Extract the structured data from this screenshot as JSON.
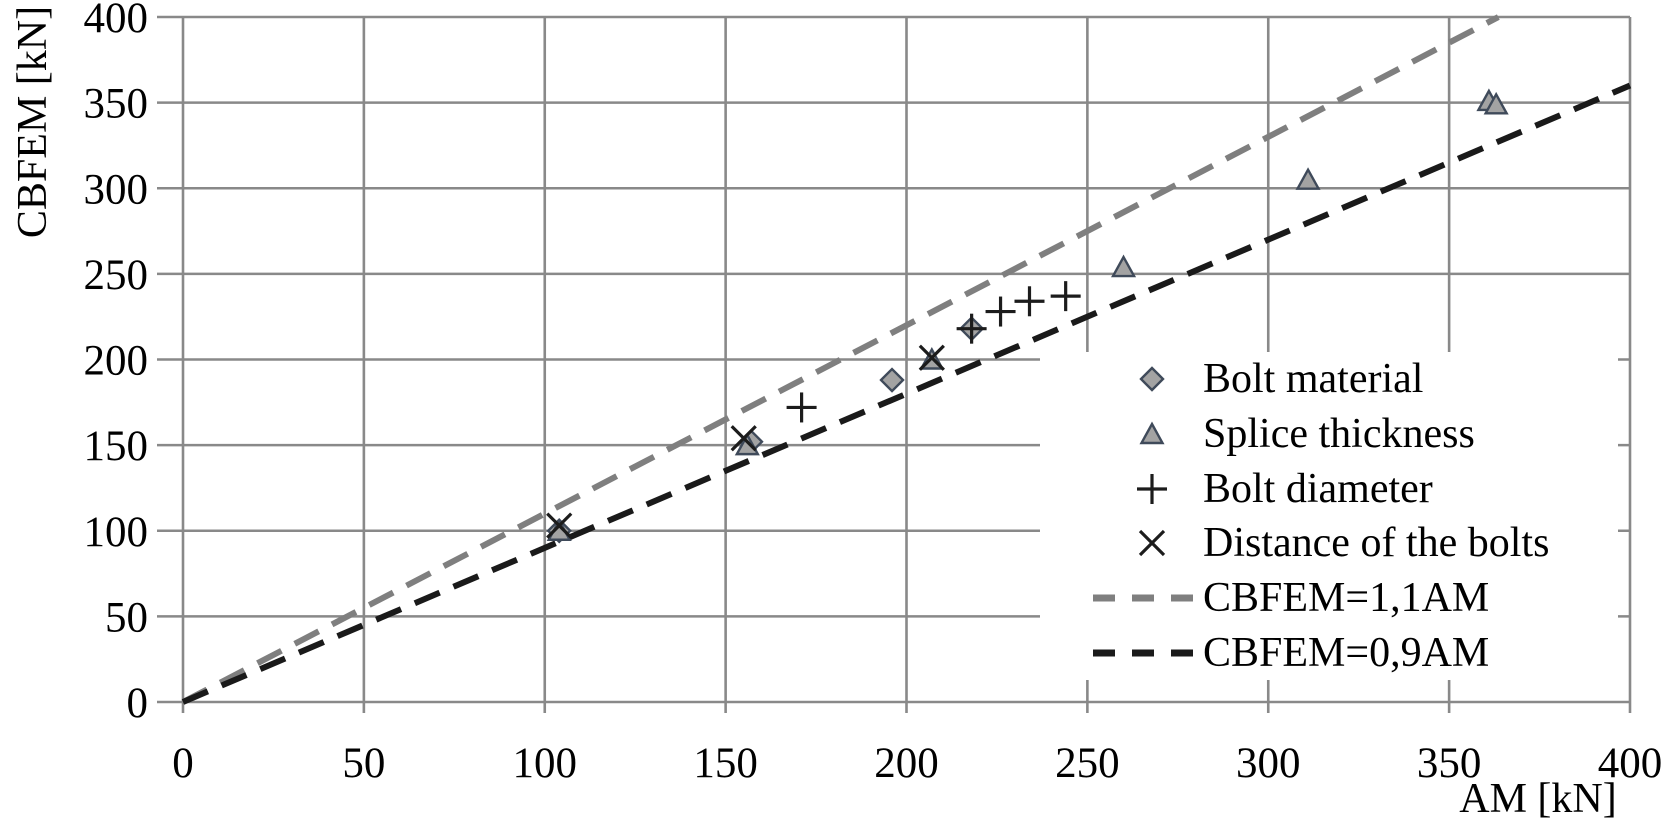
{
  "chart_data": {
    "type": "scatter",
    "title": "",
    "xlabel": "AM [kN]",
    "ylabel": "CBFEM [kN]",
    "xlim": [
      0,
      400
    ],
    "ylim": [
      0,
      400
    ],
    "x_ticks": [
      0,
      50,
      100,
      150,
      200,
      250,
      300,
      350,
      400
    ],
    "y_ticks": [
      0,
      50,
      100,
      150,
      200,
      250,
      300,
      350,
      400
    ],
    "grid": true,
    "legend_position": "inside-right",
    "colors": {
      "gridline": "#898989",
      "axis_line": "#898989",
      "marker_fill": "#a3a3a3",
      "marker_stroke": "#3f4a5a",
      "cross_stroke": "#1c1c1c",
      "line_gray": "#7f7f7f",
      "line_black": "#1a1a1a",
      "text": "#000000"
    },
    "series": [
      {
        "name": "Bolt material",
        "marker": "diamond",
        "points": [
          [
            104,
            100
          ],
          [
            157,
            152
          ],
          [
            196,
            188
          ],
          [
            218,
            218
          ]
        ]
      },
      {
        "name": "Splice thickness",
        "marker": "triangle",
        "points": [
          [
            104,
            100
          ],
          [
            156,
            150
          ],
          [
            207,
            200
          ],
          [
            260,
            254
          ],
          [
            311,
            305
          ],
          [
            361,
            351
          ],
          [
            363,
            349
          ]
        ]
      },
      {
        "name": "Bolt diameter",
        "marker": "plus",
        "points": [
          [
            171,
            172
          ],
          [
            218,
            218
          ],
          [
            226,
            228
          ],
          [
            234,
            234
          ],
          [
            244,
            237
          ]
        ]
      },
      {
        "name": "Distance of the bolts",
        "marker": "x",
        "points": [
          [
            104,
            103
          ],
          [
            155,
            154
          ],
          [
            207,
            201
          ]
        ]
      },
      {
        "name": "CBFEM=1,1AM",
        "marker": "dashed-line",
        "color_key": "line_gray",
        "line": {
          "slope": 1.1,
          "from_x": 0,
          "to_x": 363.6
        }
      },
      {
        "name": "CBFEM=0,9AM",
        "marker": "dashed-line",
        "color_key": "line_black",
        "line": {
          "slope": 0.9,
          "from_x": 0,
          "to_x": 400
        }
      }
    ]
  }
}
